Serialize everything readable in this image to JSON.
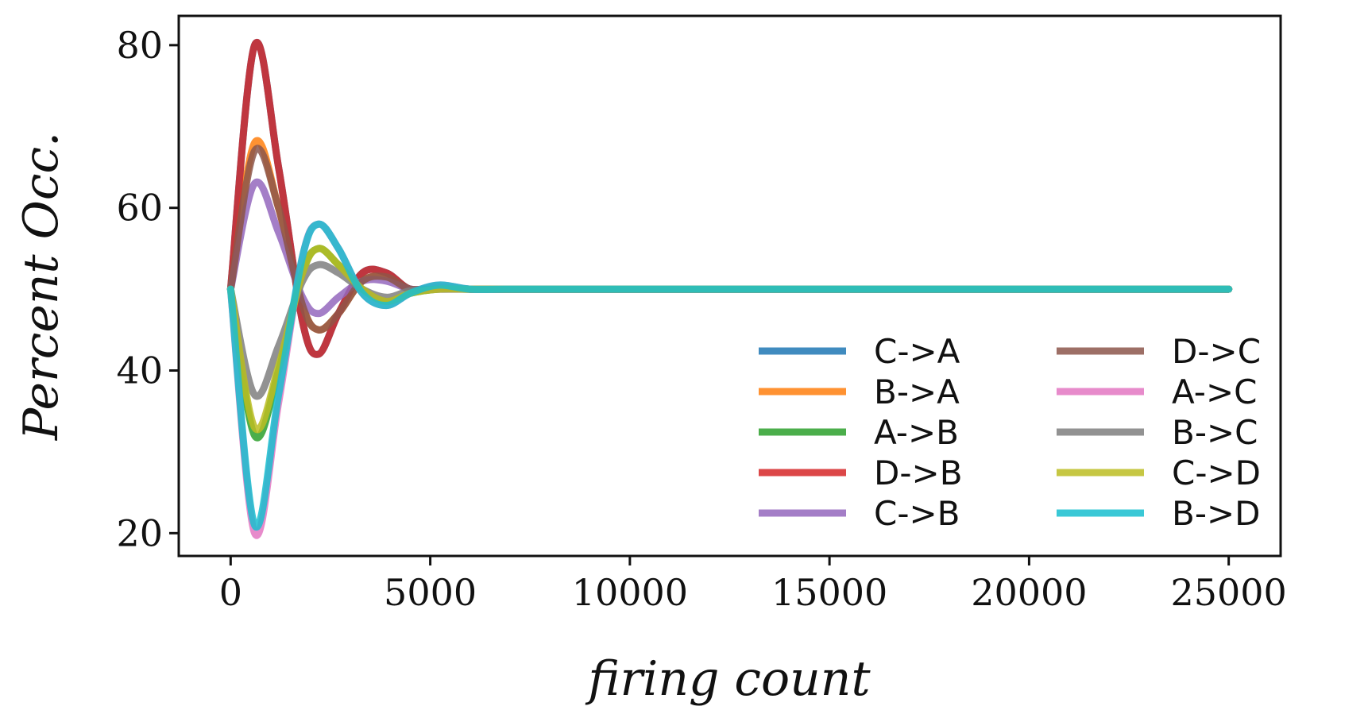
{
  "chart_data": {
    "type": "line",
    "title": "",
    "xlabel": "firing count",
    "ylabel": "Percent Occ.",
    "xlim": [
      -1300,
      26300
    ],
    "ylim": [
      17.2,
      83.6
    ],
    "xticks": [
      0,
      5000,
      10000,
      15000,
      20000,
      25000
    ],
    "yticks": [
      20,
      40,
      60,
      80
    ],
    "grid": false,
    "legend": {
      "placement": "bottom-right",
      "columns": 2
    },
    "series": [
      {
        "name": "C->A",
        "color": "#1f77b4",
        "x": [
          0,
          600,
          1200,
          1800,
          2200,
          2700,
          3300,
          3900,
          4500,
          5200,
          6000,
          7000,
          10000,
          15000,
          20000,
          25000
        ],
        "y": [
          50,
          80,
          65,
          46,
          42,
          47,
          52,
          52,
          50,
          50.3,
          50,
          50,
          50,
          50,
          50,
          50
        ]
      },
      {
        "name": "B->A",
        "color": "#ff7f0e",
        "x": [
          0,
          600,
          1200,
          1800,
          2200,
          2700,
          3300,
          3900,
          4500,
          5200,
          6000,
          7000,
          10000,
          15000,
          20000,
          25000
        ],
        "y": [
          50,
          68,
          60,
          48,
          45,
          47,
          51,
          51.5,
          50,
          50.2,
          50,
          50,
          50,
          50,
          50,
          50
        ]
      },
      {
        "name": "A->B",
        "color": "#2ca02c",
        "x": [
          0,
          600,
          1200,
          1800,
          2200,
          2700,
          3300,
          3900,
          4500,
          5200,
          6000,
          7000,
          10000,
          15000,
          20000,
          25000
        ],
        "y": [
          50,
          32,
          40,
          52,
          55,
          53,
          50,
          48.5,
          49.5,
          50,
          50,
          50,
          50,
          50,
          50,
          50
        ]
      },
      {
        "name": "D->B",
        "color": "#d62728",
        "x": [
          0,
          600,
          1200,
          1800,
          2200,
          2700,
          3300,
          3900,
          4500,
          5200,
          6000,
          7000,
          10000,
          15000,
          20000,
          25000
        ],
        "y": [
          50,
          80,
          65,
          46,
          42,
          47,
          52,
          52,
          50,
          50.3,
          50,
          50,
          50,
          50,
          50,
          50
        ]
      },
      {
        "name": "C->B",
        "color": "#9467bd",
        "x": [
          0,
          600,
          1200,
          1800,
          2200,
          2700,
          3300,
          3900,
          4500,
          5200,
          6000,
          7000,
          10000,
          15000,
          20000,
          25000
        ],
        "y": [
          50,
          63,
          57,
          49,
          47,
          49,
          51,
          51,
          50,
          50,
          50,
          50,
          50,
          50,
          50,
          50
        ]
      },
      {
        "name": "D->C",
        "color": "#8c564b",
        "x": [
          0,
          600,
          1200,
          1800,
          2200,
          2700,
          3300,
          3900,
          4500,
          5200,
          6000,
          7000,
          10000,
          15000,
          20000,
          25000
        ],
        "y": [
          50,
          67,
          60,
          48,
          45,
          47,
          51,
          51.5,
          50,
          50.2,
          50,
          50,
          50,
          50,
          50,
          50
        ]
      },
      {
        "name": "A->C",
        "color": "#e377c2",
        "x": [
          0,
          600,
          1200,
          1800,
          2200,
          2700,
          3300,
          3900,
          4500,
          5200,
          6000,
          7000,
          10000,
          15000,
          20000,
          25000
        ],
        "y": [
          50,
          20,
          36,
          54,
          58,
          55,
          49.5,
          48,
          49.5,
          50.5,
          50,
          50,
          50,
          50,
          50,
          50
        ]
      },
      {
        "name": "B->C",
        "color": "#7f7f7f",
        "x": [
          0,
          600,
          1200,
          1800,
          2200,
          2700,
          3300,
          3900,
          4500,
          5200,
          6000,
          7000,
          10000,
          15000,
          20000,
          25000
        ],
        "y": [
          50,
          37,
          43,
          51,
          53,
          52,
          50,
          49,
          49.8,
          50,
          50,
          50,
          50,
          50,
          50,
          50
        ]
      },
      {
        "name": "C->D",
        "color": "#bcbd22",
        "x": [
          0,
          600,
          1200,
          1800,
          2200,
          2700,
          3300,
          3900,
          4500,
          5200,
          6000,
          7000,
          10000,
          15000,
          20000,
          25000
        ],
        "y": [
          50,
          33,
          40.5,
          52,
          55,
          53,
          50,
          48.5,
          49.5,
          50,
          50,
          50,
          50,
          50,
          50,
          50
        ]
      },
      {
        "name": "B->D",
        "color": "#17becf",
        "x": [
          0,
          600,
          1200,
          1800,
          2200,
          2700,
          3300,
          3900,
          4500,
          5200,
          6000,
          7000,
          10000,
          15000,
          20000,
          25000
        ],
        "y": [
          50,
          21,
          37,
          54,
          58,
          55,
          49.5,
          48,
          49.5,
          50.5,
          50,
          50,
          50,
          50,
          50,
          50
        ]
      }
    ]
  }
}
